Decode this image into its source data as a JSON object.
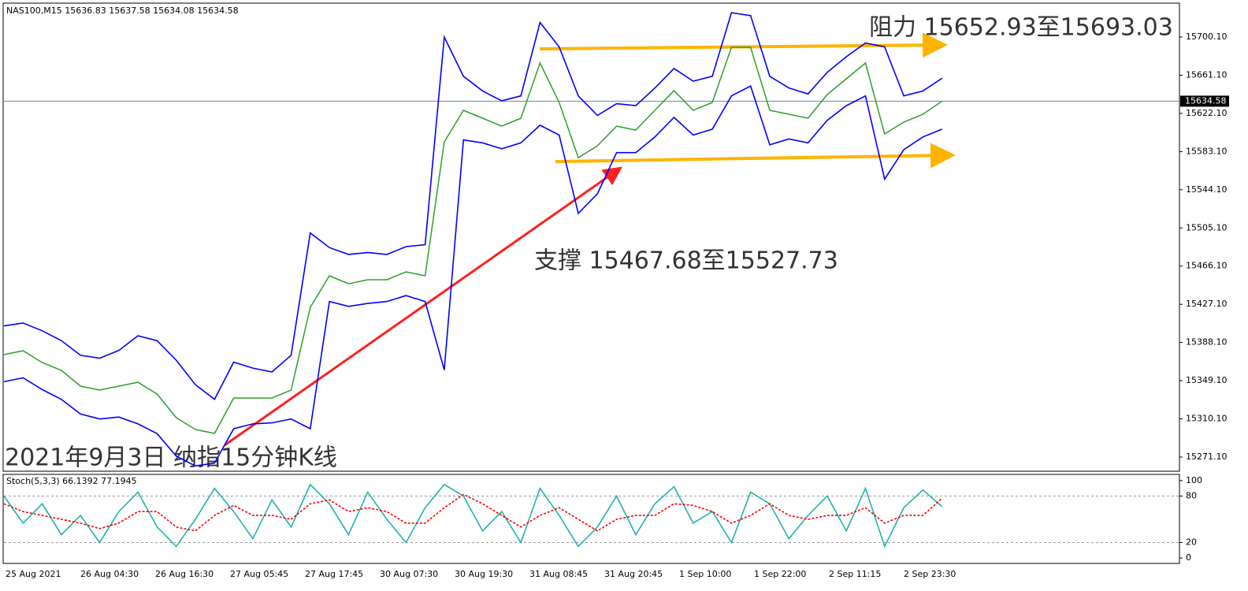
{
  "chart_data": [
    {
      "type": "line",
      "title": "NAS100,M15  15636.83 15637.58 15634.08 15634.58",
      "annotations": [
        "阻力 15652.93至15693.03",
        "支撑 15467.68至15527.73",
        "2021年9月3日 纳指15分钟K线"
      ],
      "current_price": {
        "value": 15634.58,
        "label": "15634.58"
      },
      "ylim": [
        15256.6,
        15733.9
      ],
      "yticks": [
        {
          "value": 15271.1,
          "label": "15271.10"
        },
        {
          "value": 15310.1,
          "label": "15310.10"
        },
        {
          "value": 15349.1,
          "label": "15349.10"
        },
        {
          "value": 15388.1,
          "label": "15388.10"
        },
        {
          "value": 15427.1,
          "label": "15427.10"
        },
        {
          "value": 15466.1,
          "label": "15466.10"
        },
        {
          "value": 15505.1,
          "label": "15505.10"
        },
        {
          "value": 15544.1,
          "label": "15544.10"
        },
        {
          "value": 15583.1,
          "label": "15583.10"
        },
        {
          "value": 15622.1,
          "label": "15622.10"
        },
        {
          "value": 15661.1,
          "label": "15661.10"
        },
        {
          "value": 15700.1,
          "label": "15700.10"
        }
      ],
      "series": [
        {
          "color": "#2ca02c",
          "values": [
            15375.7,
            15379.7,
            15367.6,
            15359.6,
            15343.5,
            15339.5,
            15343.5,
            15347.5,
            15335.4,
            15311.3,
            15299.2,
            15295.2,
            15331.4,
            15331.4,
            15331.4,
            15339.5,
            15424.0,
            15456.2,
            15448.1,
            15452.2,
            15452.2,
            15460.2,
            15456.2,
            15593.0,
            15625.2,
            15617.2,
            15609.1,
            15617.2,
            15673.5,
            15633.3,
            15576.9,
            15589.0,
            15609.1,
            15605.1,
            15625.2,
            15645.4,
            15625.2,
            15633.3,
            15689.6,
            15689.6,
            15625.2,
            15621.2,
            15617.2,
            15641.3,
            15657.4,
            15673.5,
            15601.1,
            15613.2,
            15621.2,
            15634.58
          ]
        },
        {
          "color": "#0000ff",
          "values": [
            15405,
            15408,
            15400,
            15390,
            15375,
            15372,
            15380,
            15395,
            15390,
            15370,
            15345,
            15330,
            15368,
            15362,
            15358,
            15375,
            15500,
            15485,
            15478,
            15480,
            15478,
            15486,
            15488,
            15700,
            15660,
            15645,
            15635,
            15640,
            15715,
            15690,
            15640,
            15620,
            15632,
            15630,
            15648,
            15668,
            15655,
            15660,
            15725,
            15722,
            15660,
            15648,
            15642,
            15664,
            15680,
            15694,
            15690,
            15640,
            15645,
            15658
          ]
        },
        {
          "color": "#0000ff",
          "values": [
            15348,
            15352,
            15340,
            15330,
            15315,
            15310,
            15312,
            15305,
            15295,
            15272,
            15262,
            15265,
            15300,
            15305,
            15306,
            15310,
            15300,
            15430,
            15425,
            15428,
            15430,
            15436,
            15430,
            15360,
            15595,
            15592,
            15586,
            15592,
            15610,
            15600,
            15520,
            15540,
            15582,
            15582,
            15598,
            15618,
            15600,
            15606,
            15640,
            15650,
            15590,
            15596,
            15592,
            15615,
            15630,
            15640,
            15555,
            15585,
            15598,
            15606
          ]
        }
      ]
    },
    {
      "type": "line",
      "title": "Stoch(5,3,3) 66.1392 77.1945",
      "ylim": [
        -7,
        108
      ],
      "yticks": [
        0,
        20,
        80,
        100
      ],
      "levels": [
        20,
        80
      ],
      "xtick_labels": [
        "25 Aug 2021",
        "26 Aug 04:30",
        "26 Aug 16:30",
        "27 Aug 05:45",
        "27 Aug 17:45",
        "30 Aug 07:30",
        "30 Aug 19:30",
        "31 Aug 08:45",
        "31 Aug 20:45",
        "1 Sep 10:00",
        "1 Sep 22:00",
        "2 Sep 11:15",
        "2 Sep 23:30"
      ],
      "series": [
        {
          "color": "#20b2aa",
          "values": [
            80,
            45,
            70,
            30,
            55,
            20,
            60,
            85,
            40,
            15,
            50,
            90,
            60,
            25,
            75,
            40,
            95,
            70,
            30,
            85,
            50,
            20,
            65,
            95,
            80,
            35,
            60,
            20,
            90,
            55,
            15,
            40,
            80,
            30,
            70,
            92,
            45,
            60,
            20,
            85,
            70,
            25,
            55,
            80,
            35,
            90,
            15,
            65,
            88,
            66.1392
          ]
        },
        {
          "color": "#ff0000",
          "values": [
            70,
            60,
            55,
            50,
            45,
            38,
            45,
            60,
            60,
            40,
            35,
            55,
            68,
            55,
            55,
            50,
            70,
            75,
            60,
            65,
            60,
            45,
            45,
            65,
            82,
            70,
            55,
            40,
            55,
            65,
            50,
            35,
            50,
            55,
            55,
            70,
            68,
            60,
            45,
            55,
            70,
            55,
            50,
            55,
            55,
            65,
            45,
            55,
            55,
            77.1945
          ]
        }
      ]
    }
  ]
}
